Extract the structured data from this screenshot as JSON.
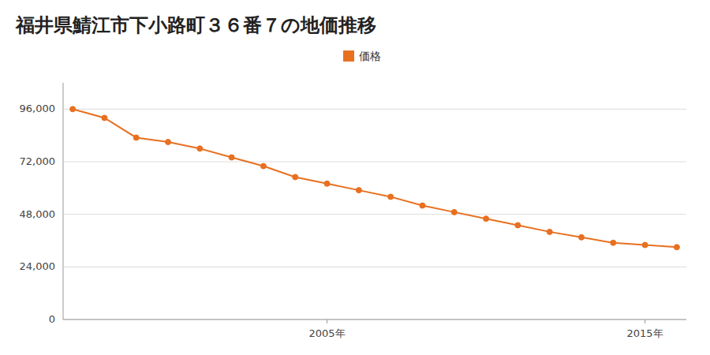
{
  "chart_data": {
    "type": "line",
    "title": "福井県鯖江市下小路町３６番７の地価推移",
    "x": [
      1997,
      1998,
      1999,
      2000,
      2001,
      2002,
      2003,
      2004,
      2005,
      2006,
      2007,
      2008,
      2009,
      2010,
      2011,
      2012,
      2013,
      2014,
      2015,
      2016
    ],
    "series": [
      {
        "name": "価格",
        "color": "#e87020",
        "marker": "circle",
        "values": [
          96000,
          92000,
          83000,
          81000,
          78000,
          74000,
          70000,
          65000,
          62000,
          59000,
          56000,
          52000,
          49000,
          46000,
          43000,
          40000,
          37500,
          35000,
          34000,
          33000
        ]
      }
    ],
    "xlim": [
      1996.7,
      2016.3
    ],
    "xticks": [
      {
        "value": 2005,
        "label": "2005年"
      },
      {
        "value": 2015,
        "label": "2015年"
      }
    ],
    "ylim": [
      0,
      108000
    ],
    "yticks": [
      0,
      {
        "value": 24000,
        "label": "24,000"
      },
      {
        "value": 48000,
        "label": "48,000"
      },
      {
        "value": 72000,
        "label": "72,000"
      },
      {
        "value": 96000,
        "label": "96,000"
      }
    ],
    "grid": true,
    "legend": "top"
  }
}
